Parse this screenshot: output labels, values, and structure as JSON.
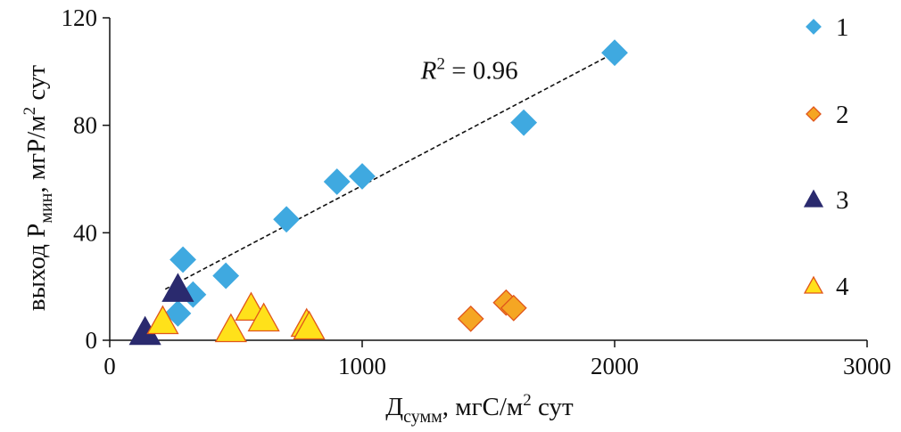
{
  "chart_data": {
    "type": "scatter",
    "title": "",
    "xlabel": {
      "main": "Д",
      "sub": "сумм",
      "rest": ", мгС/м",
      "sup": "2",
      "tail": " сут"
    },
    "ylabel": {
      "main": "выход P",
      "sub": "мин",
      "rest": ", мгР/м",
      "sup": "2",
      "tail": " сут"
    },
    "xlim": [
      0,
      3000
    ],
    "ylim": [
      0,
      120
    ],
    "x_ticks": [
      0,
      1000,
      2000,
      3000
    ],
    "y_ticks": [
      0,
      40,
      80,
      120
    ],
    "x_tick_labels": [
      "0",
      "1000",
      "2000",
      "3000"
    ],
    "y_tick_labels": [
      "0",
      "40",
      "80",
      "120"
    ],
    "grid": false,
    "legend_position": "right",
    "series": [
      {
        "name": "1",
        "marker": "diamond",
        "color": "#3FA9E0",
        "stroke": "#3FA9E0",
        "points": [
          [
            270,
            10
          ],
          [
            290,
            30
          ],
          [
            330,
            17
          ],
          [
            460,
            24
          ],
          [
            700,
            45
          ],
          [
            900,
            59
          ],
          [
            1000,
            61
          ],
          [
            1640,
            81
          ],
          [
            2000,
            107
          ]
        ]
      },
      {
        "name": "2",
        "marker": "diamond",
        "color": "#F5A623",
        "stroke": "#E0561B",
        "points": [
          [
            1430,
            8
          ],
          [
            1570,
            14
          ],
          [
            1600,
            12
          ]
        ]
      },
      {
        "name": "3",
        "marker": "triangle",
        "color": "#2A2A6E",
        "stroke": "#2A2A6E",
        "points": [
          [
            140,
            3
          ],
          [
            270,
            19
          ]
        ]
      },
      {
        "name": "4",
        "marker": "triangle",
        "color": "#FFE11A",
        "stroke": "#E0561B",
        "points": [
          [
            210,
            7
          ],
          [
            480,
            4
          ],
          [
            560,
            12
          ],
          [
            610,
            8
          ],
          [
            780,
            6
          ],
          [
            790,
            5
          ]
        ]
      }
    ],
    "trendline": {
      "x": [
        220,
        2000
      ],
      "y": [
        19,
        107
      ],
      "style": "dashed",
      "color": "#111111"
    },
    "annotation": {
      "prefix": "R",
      "sup": "2",
      "rest": " = 0.96",
      "x": 1250,
      "y": 100
    }
  }
}
